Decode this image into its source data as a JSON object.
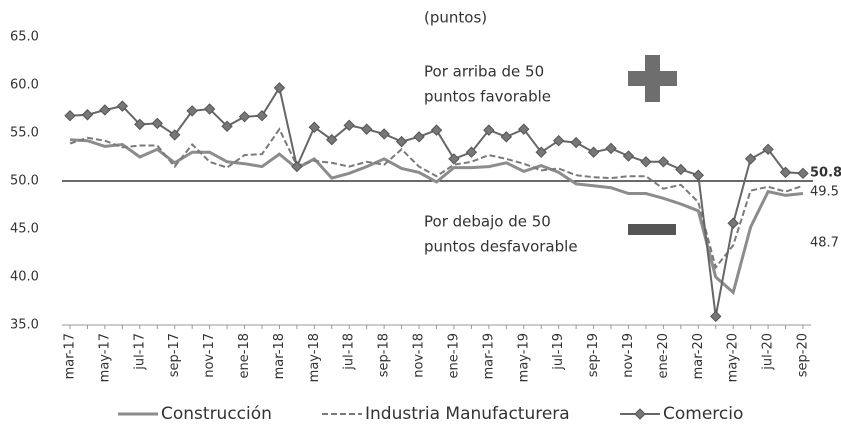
{
  "chart_data": {
    "type": "line",
    "annotations": [
      "(puntos)",
      "Por arriba de 50",
      "puntos favorable",
      "Por debajo de 50",
      "puntos desfavorable"
    ],
    "categories": [
      "mar-17",
      null,
      "may-17",
      null,
      "jul-17",
      null,
      "sep-17",
      null,
      "nov-17",
      null,
      "ene-18",
      null,
      "mar-18",
      null,
      "may-18",
      null,
      "jul-18",
      null,
      "sep-18",
      null,
      "nov-18",
      null,
      "ene-19",
      null,
      "mar-19",
      null,
      "may-19",
      null,
      "jul-19",
      null,
      "sep-19",
      null,
      "nov-19",
      null,
      "ene-20",
      null,
      "mar-20",
      null,
      "may-20",
      null,
      "jul-20",
      null,
      "sep-20"
    ],
    "series": [
      {
        "name": "Construcción",
        "color": "#8c8c8c",
        "style": "solid",
        "values": [
          54.3,
          54.2,
          53.6,
          53.8,
          52.5,
          53.3,
          51.9,
          53.0,
          53.0,
          52.0,
          51.8,
          51.5,
          52.8,
          51.3,
          52.3,
          50.3,
          50.8,
          51.5,
          52.3,
          51.3,
          50.9,
          49.9,
          51.4,
          51.4,
          51.5,
          51.9,
          51.0,
          51.6,
          50.9,
          49.7,
          49.5,
          49.3,
          48.7,
          48.7,
          48.2,
          47.6,
          46.9,
          40.0,
          38.4,
          45.2,
          48.9,
          48.5,
          48.7
        ]
      },
      {
        "name": "Industria Manufacturera",
        "color": "#7a7a7a",
        "style": "dashed",
        "values": [
          53.9,
          54.5,
          54.2,
          53.5,
          53.7,
          53.7,
          51.5,
          53.8,
          52.0,
          51.4,
          52.7,
          52.8,
          55.4,
          51.6,
          52.1,
          51.9,
          51.5,
          52.0,
          51.7,
          53.3,
          51.5,
          50.5,
          51.7,
          52.0,
          52.7,
          52.3,
          51.8,
          51.1,
          51.3,
          50.6,
          50.4,
          50.3,
          50.5,
          50.5,
          49.2,
          49.6,
          47.8,
          41.0,
          43.3,
          49.0,
          49.4,
          48.9,
          49.5
        ]
      },
      {
        "name": "Comercio",
        "color": "#666666",
        "style": "diamond",
        "values": [
          56.8,
          56.9,
          57.4,
          57.8,
          55.9,
          56.0,
          54.8,
          57.3,
          57.5,
          55.7,
          56.7,
          56.8,
          59.7,
          51.5,
          55.6,
          54.3,
          55.8,
          55.4,
          54.9,
          54.1,
          54.6,
          55.3,
          52.3,
          53.0,
          55.3,
          54.6,
          55.4,
          53.0,
          54.2,
          54.0,
          53.0,
          53.4,
          52.6,
          52.0,
          52.0,
          51.2,
          50.6,
          35.9,
          45.6,
          52.3,
          53.3,
          50.9,
          50.8
        ]
      }
    ],
    "reference_line": 50,
    "ylim": [
      35,
      65
    ],
    "yticks": [
      {
        "value": 35,
        "label": "35.0"
      },
      {
        "value": 40,
        "label": "40.0"
      },
      {
        "value": 45,
        "label": "45.0"
      },
      {
        "value": 50,
        "label": "50.0"
      },
      {
        "value": 55,
        "label": "55.0"
      },
      {
        "value": 60,
        "label": "60.0"
      },
      {
        "value": 65,
        "label": "65.0"
      }
    ],
    "legend": "bottom"
  }
}
